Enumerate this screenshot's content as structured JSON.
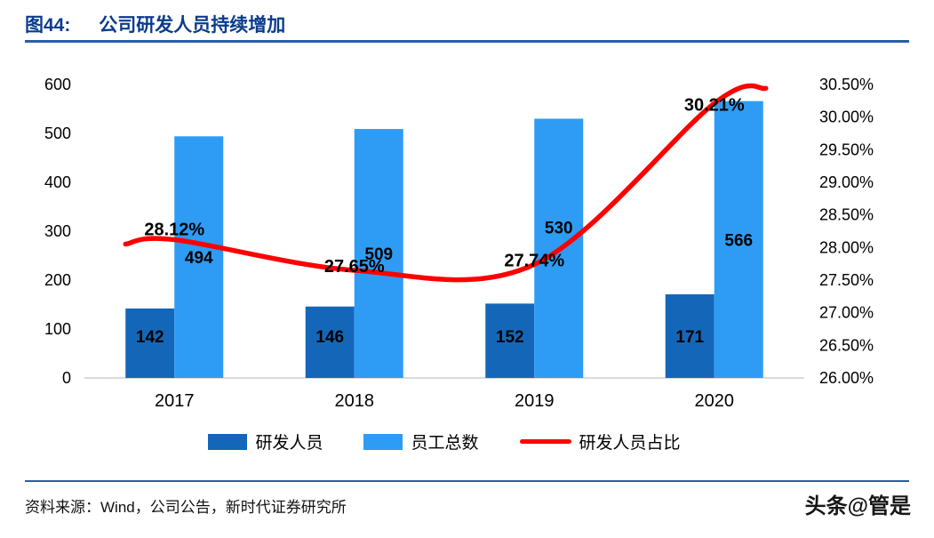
{
  "header": {
    "figure_label": "图44:",
    "title": "公司研发人员持续增加"
  },
  "colors": {
    "title_text": "#0B3B8E",
    "divider": "#2A5CAA",
    "bar_dark_blue": "#1467B8",
    "bar_light_blue": "#2E9CF4",
    "line_red": "#FF0000"
  },
  "chart_data": {
    "type": "combo",
    "title": "公司研发人员持续增加",
    "categories": [
      "2017",
      "2018",
      "2019",
      "2020"
    ],
    "series": [
      {
        "name": "研发人员",
        "type": "bar",
        "axis": "left",
        "color": "#1467B8",
        "values": [
          142,
          146,
          152,
          171
        ]
      },
      {
        "name": "员工总数",
        "type": "bar",
        "axis": "left",
        "color": "#2E9CF4",
        "values": [
          494,
          509,
          530,
          566
        ]
      },
      {
        "name": "研发人员占比",
        "type": "line",
        "axis": "right",
        "color": "#FF0000",
        "values": [
          28.12,
          27.65,
          27.74,
          30.21
        ],
        "point_labels": [
          "28.12%",
          "27.65%",
          "27.74%",
          "30.21%"
        ]
      }
    ],
    "left_axis": {
      "min": 0,
      "max": 600,
      "step": 100,
      "tick_labels": [
        "0",
        "100",
        "200",
        "300",
        "400",
        "500",
        "600"
      ]
    },
    "right_axis": {
      "min": 26.0,
      "max": 30.5,
      "step": 0.5,
      "tick_labels": [
        "26.00%",
        "26.50%",
        "27.00%",
        "27.50%",
        "28.00%",
        "28.50%",
        "29.00%",
        "29.50%",
        "30.00%",
        "30.50%"
      ]
    },
    "grid": false,
    "legend_position": "bottom"
  },
  "footer": {
    "source": "资料来源：Wind，公司公告，新时代证券研究所",
    "watermark": "头条@管是"
  }
}
